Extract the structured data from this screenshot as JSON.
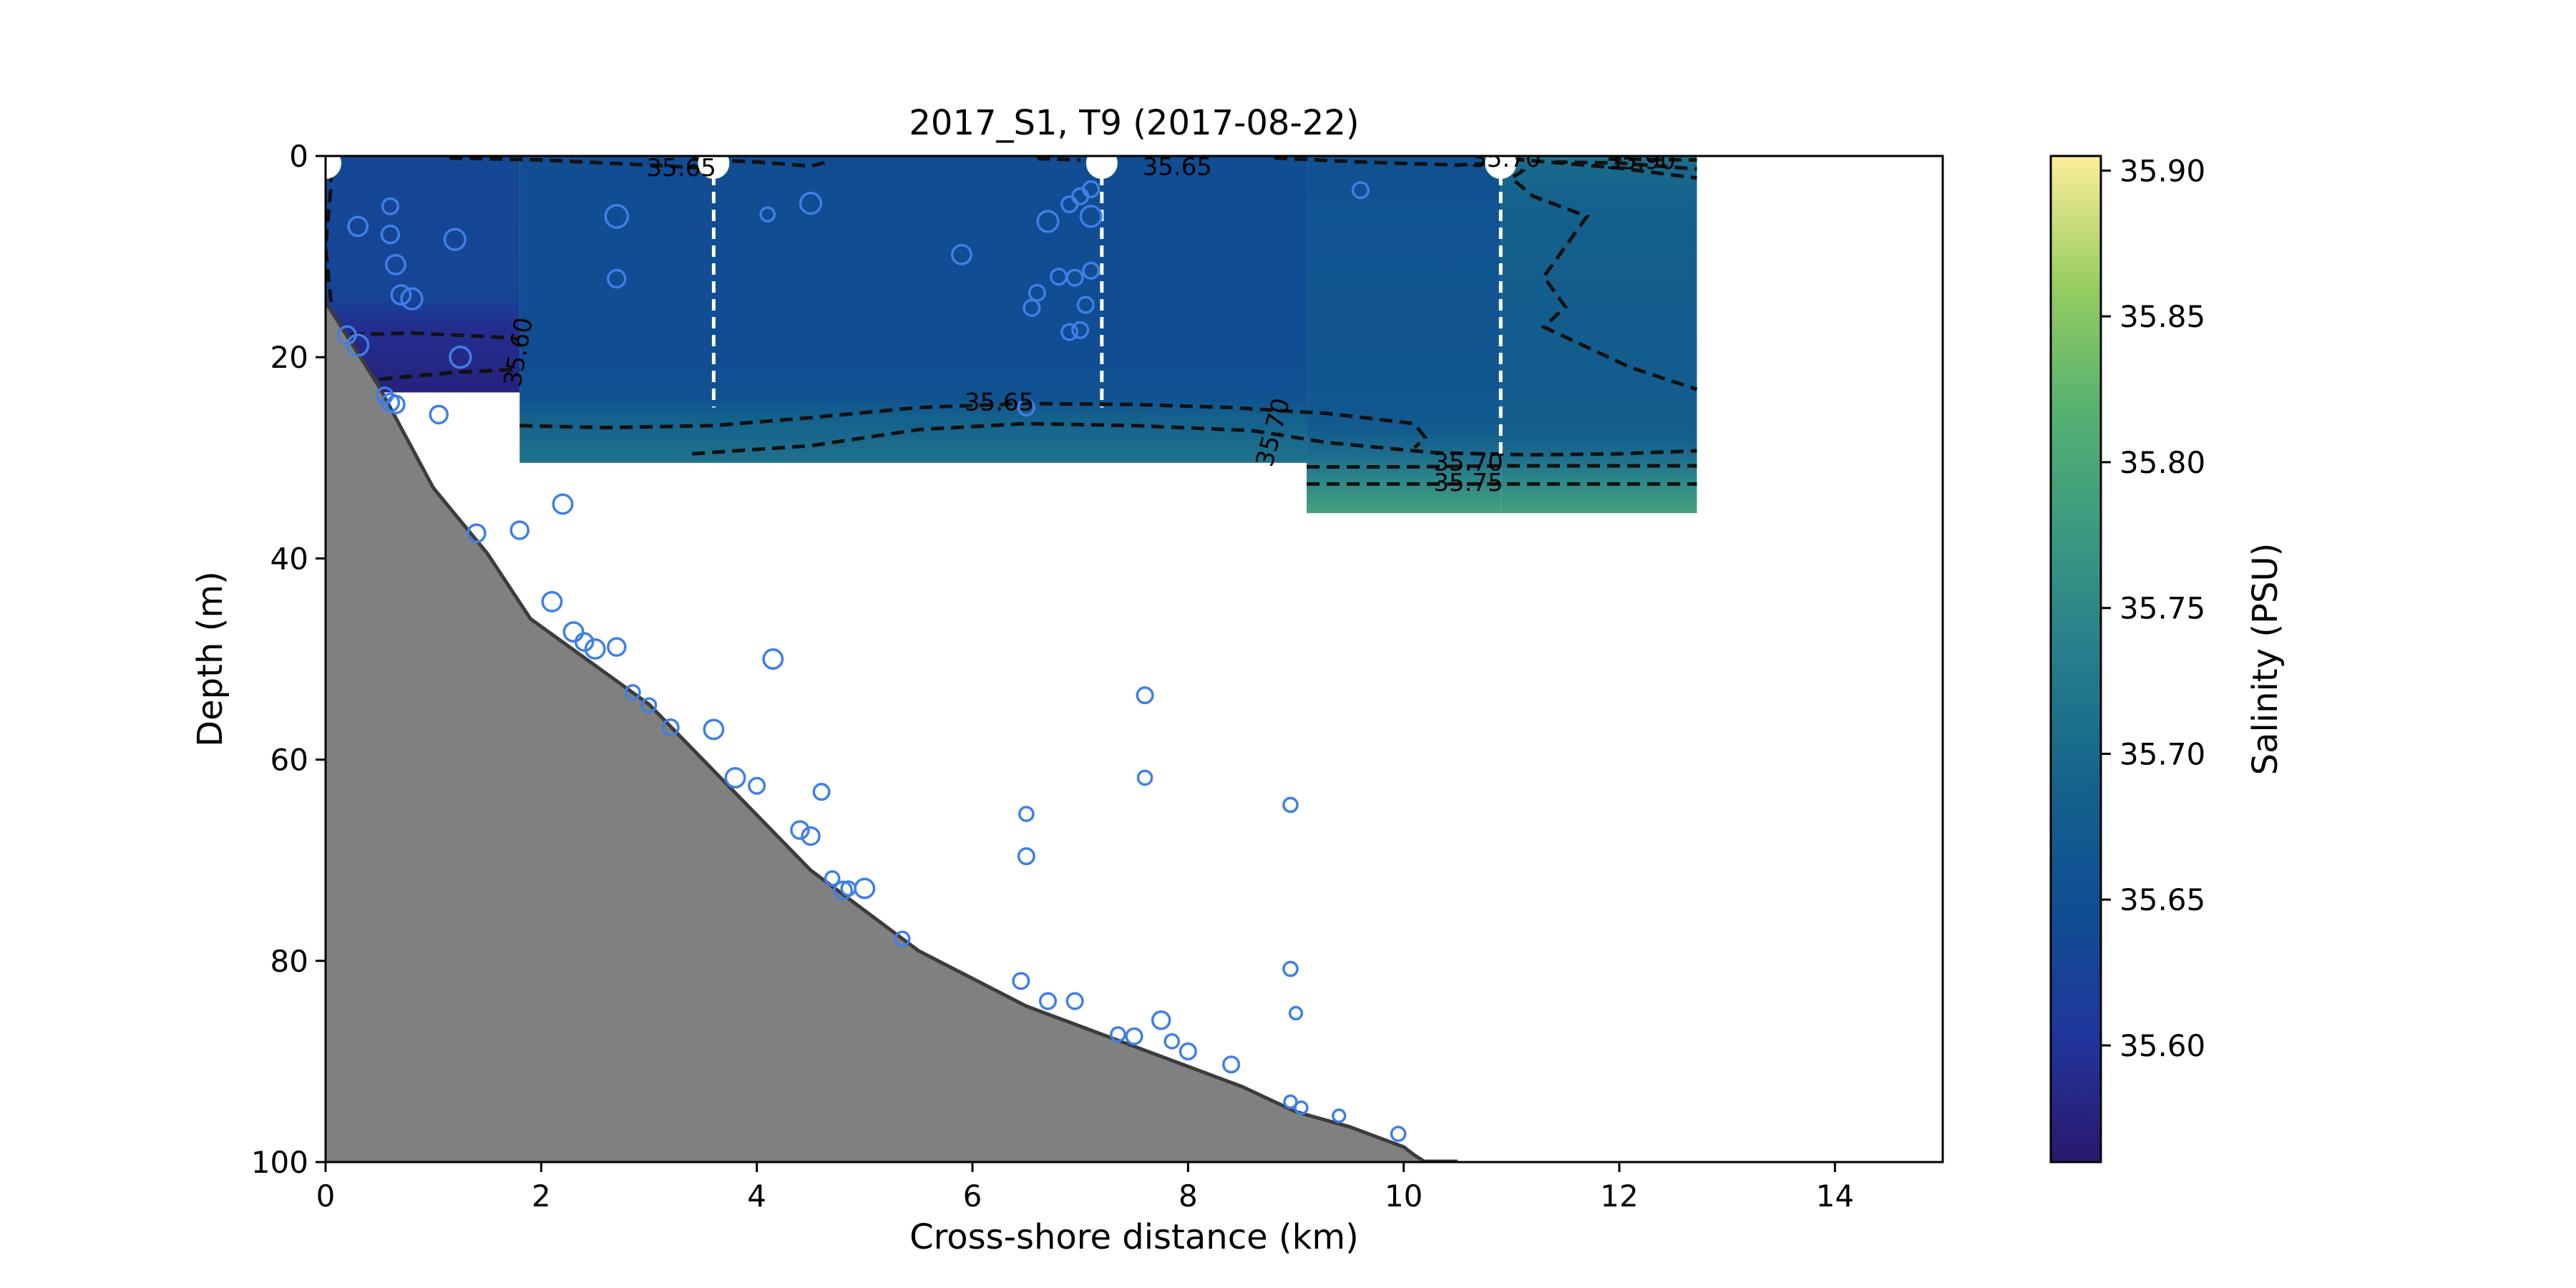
{
  "chart_data": {
    "type": "heatmap",
    "title": "2017_S1, T9 (2017-08-22)",
    "xlabel": "Cross-shore distance (km)",
    "ylabel": "Depth (m)",
    "xlim": [
      0,
      15
    ],
    "ylim": [
      0,
      100
    ],
    "y_inverted": true,
    "xticks": [
      "0",
      "2",
      "4",
      "6",
      "8",
      "10",
      "12",
      "14"
    ],
    "yticks": [
      "0",
      "20",
      "40",
      "60",
      "80",
      "100"
    ],
    "colorbar": {
      "label": "Salinity (PSU)",
      "range": [
        35.56,
        35.905
      ],
      "ticks": [
        "35.60",
        "35.65",
        "35.70",
        "35.75",
        "35.80",
        "35.85",
        "35.90"
      ],
      "colormap": "haline"
    },
    "salinity_field": {
      "columns": [
        {
          "x0": 0.0,
          "x1": 1.8,
          "z0": 0,
          "z1": 23.5,
          "profile": [
            [
              0,
              35.635
            ],
            [
              14,
              35.63
            ],
            [
              17,
              35.59
            ],
            [
              23.5,
              35.575
            ]
          ]
        },
        {
          "x0": 1.8,
          "x1": 9.1,
          "z0": 0,
          "z1": 30.5,
          "profile": [
            [
              0,
              35.645
            ],
            [
              20,
              35.645
            ],
            [
              24,
              35.655
            ],
            [
              26,
              35.685
            ],
            [
              30.5,
              35.715
            ]
          ]
        },
        {
          "x0": 9.1,
          "x1": 10.9,
          "z0": 0,
          "z1": 35.5,
          "profile": [
            [
              0,
              35.655
            ],
            [
              22,
              35.66
            ],
            [
              27,
              35.67
            ],
            [
              30,
              35.71
            ],
            [
              32,
              35.745
            ],
            [
              35.5,
              35.79
            ]
          ]
        },
        {
          "x0": 10.9,
          "x1": 12.72,
          "z0": 0,
          "z1": 35.5,
          "profile": [
            [
              0,
              35.72
            ],
            [
              1,
              35.7
            ],
            [
              5,
              35.685
            ],
            [
              20,
              35.675
            ],
            [
              28,
              35.68
            ],
            [
              30,
              35.71
            ],
            [
              32,
              35.745
            ],
            [
              35.5,
              35.79
            ]
          ]
        }
      ]
    },
    "contours": [
      {
        "level": "35.60",
        "points": [
          [
            0.05,
            17.8
          ],
          [
            0.8,
            17.6
          ],
          [
            1.6,
            18.0
          ],
          [
            1.8,
            18.2
          ]
        ]
      },
      {
        "level": "35.60",
        "points": [
          [
            0.5,
            22.2
          ],
          [
            1.2,
            21.5
          ],
          [
            1.8,
            21.2
          ]
        ]
      },
      {
        "level": "35.65",
        "points": [
          [
            1.8,
            26.8
          ],
          [
            2.6,
            27.0
          ],
          [
            3.6,
            26.8
          ],
          [
            4.5,
            26.0
          ],
          [
            5.5,
            25.0
          ],
          [
            6.5,
            24.6
          ],
          [
            7.5,
            24.7
          ],
          [
            8.4,
            25.0
          ],
          [
            9.3,
            25.6
          ],
          [
            10.1,
            26.6
          ],
          [
            10.2,
            28.0
          ],
          [
            10.1,
            29.0
          ]
        ]
      },
      {
        "level": "35.70",
        "points": [
          [
            3.4,
            29.6
          ],
          [
            4.5,
            28.8
          ],
          [
            5.5,
            27.2
          ],
          [
            6.5,
            26.6
          ],
          [
            7.5,
            26.8
          ],
          [
            8.6,
            27.3
          ],
          [
            9.3,
            28.5
          ],
          [
            10.3,
            29.5
          ],
          [
            11.2,
            29.7
          ],
          [
            12.0,
            29.6
          ],
          [
            12.72,
            29.3
          ]
        ]
      },
      {
        "level": "35.70",
        "points": [
          [
            9.1,
            30.9
          ],
          [
            10.0,
            30.9
          ],
          [
            11.0,
            30.8
          ],
          [
            12.0,
            30.8
          ],
          [
            12.72,
            30.8
          ]
        ]
      },
      {
        "level": "35.75",
        "points": [
          [
            9.1,
            32.6
          ],
          [
            10.0,
            32.6
          ],
          [
            11.0,
            32.6
          ],
          [
            12.0,
            32.6
          ],
          [
            12.72,
            32.6
          ]
        ]
      },
      {
        "level": "35.65",
        "points": [
          [
            0.05,
            14.5
          ],
          [
            0.0,
            9.0
          ],
          [
            0.05,
            3.0
          ],
          [
            0.05,
            1.5
          ]
        ]
      },
      {
        "level": "35.65",
        "points": [
          [
            1.15,
            0.2
          ],
          [
            2.0,
            0.4
          ],
          [
            3.0,
            0.9
          ],
          [
            3.5,
            1.2
          ]
        ]
      },
      {
        "level": "35.65",
        "points": [
          [
            3.4,
            0.3
          ],
          [
            4.0,
            0.6
          ],
          [
            4.5,
            1.0
          ],
          [
            4.65,
            0.6
          ]
        ]
      },
      {
        "level": "35.65",
        "points": [
          [
            6.6,
            0.25
          ],
          [
            7.0,
            0.4
          ]
        ]
      },
      {
        "level": "35.65",
        "points": [
          [
            8.8,
            0.2
          ],
          [
            9.6,
            0.6
          ],
          [
            10.5,
            0.9
          ],
          [
            11.0,
            0.6
          ]
        ]
      },
      {
        "level": "35.70",
        "points": [
          [
            10.9,
            0.9
          ],
          [
            11.1,
            1.5
          ],
          [
            11.0,
            2.2
          ],
          [
            11.2,
            4.0
          ],
          [
            11.7,
            6.0
          ],
          [
            11.5,
            9.0
          ],
          [
            11.3,
            12.0
          ],
          [
            11.5,
            15.0
          ],
          [
            11.3,
            17.0
          ],
          [
            11.7,
            19.0
          ],
          [
            12.1,
            21.0
          ],
          [
            12.72,
            23.2
          ]
        ]
      },
      {
        "level": "35.70",
        "points": [
          [
            11.0,
            0.3
          ],
          [
            12.0,
            1.2
          ],
          [
            12.72,
            2.2
          ]
        ]
      },
      {
        "level": "35.80",
        "points": [
          [
            11.4,
            0.6
          ],
          [
            12.0,
            0.7
          ],
          [
            12.72,
            1.3
          ]
        ]
      },
      {
        "level": "35.90",
        "points": [
          [
            11.9,
            0.3
          ],
          [
            12.72,
            0.4
          ]
        ]
      }
    ],
    "contour_labels": [
      {
        "text": "35.60",
        "x": 1.8,
        "y": 19.5,
        "angle": -80
      },
      {
        "text": "35.65",
        "x": 3.3,
        "y": 1.3,
        "angle": 0
      },
      {
        "text": "35.65",
        "x": 7.9,
        "y": 1.2,
        "angle": 0
      },
      {
        "text": "35.65",
        "x": 6.25,
        "y": 24.6,
        "angle": 0
      },
      {
        "text": "35.70",
        "x": 8.8,
        "y": 27.5,
        "angle": -75
      },
      {
        "text": "35.70",
        "x": 10.6,
        "y": 30.6,
        "angle": 0
      },
      {
        "text": "35.75",
        "x": 10.6,
        "y": 32.6,
        "angle": 0
      },
      {
        "text": "35.70",
        "x": 10.95,
        "y": 0.4,
        "angle": 0
      },
      {
        "text": "35.90",
        "x": 12.2,
        "y": 0.6,
        "angle": 0
      }
    ],
    "stations": [
      {
        "x": 0.0,
        "depth": 0
      },
      {
        "x": 3.6,
        "depth": 25
      },
      {
        "x": 7.2,
        "depth": 25
      },
      {
        "x": 10.9,
        "depth": 30
      }
    ],
    "bathymetry": [
      [
        0,
        14.5
      ],
      [
        0.5,
        23
      ],
      [
        1.0,
        33
      ],
      [
        1.5,
        39.5
      ],
      [
        1.9,
        46
      ],
      [
        3.0,
        54.5
      ],
      [
        4.5,
        71
      ],
      [
        5.5,
        79
      ],
      [
        6.5,
        84.5
      ],
      [
        7.5,
        88.5
      ],
      [
        8.5,
        92.5
      ],
      [
        9.0,
        95
      ],
      [
        9.5,
        96.5
      ],
      [
        10.0,
        98.5
      ],
      [
        10.1,
        99.3
      ],
      [
        10.2,
        100
      ]
    ],
    "observations": [
      {
        "x": 0.3,
        "y": 7.0,
        "s": 1.1
      },
      {
        "x": 0.6,
        "y": 5.0,
        "s": 0.9
      },
      {
        "x": 0.6,
        "y": 7.8,
        "s": 1.0
      },
      {
        "x": 0.65,
        "y": 10.8,
        "s": 1.1
      },
      {
        "x": 0.7,
        "y": 13.8,
        "s": 1.1
      },
      {
        "x": 0.8,
        "y": 14.2,
        "s": 1.2
      },
      {
        "x": 0.2,
        "y": 17.8,
        "s": 1.0
      },
      {
        "x": 0.3,
        "y": 18.8,
        "s": 1.2
      },
      {
        "x": 0.55,
        "y": 23.8,
        "s": 0.9
      },
      {
        "x": 0.6,
        "y": 24.5,
        "s": 1.0
      },
      {
        "x": 0.65,
        "y": 24.7,
        "s": 1.0
      },
      {
        "x": 1.2,
        "y": 8.3,
        "s": 1.2
      },
      {
        "x": 1.25,
        "y": 20.0,
        "s": 1.2
      },
      {
        "x": 1.05,
        "y": 25.7,
        "s": 1.0
      },
      {
        "x": 2.7,
        "y": 6.0,
        "s": 1.3
      },
      {
        "x": 2.7,
        "y": 12.2,
        "s": 1.0
      },
      {
        "x": 4.1,
        "y": 5.8,
        "s": 0.8
      },
      {
        "x": 4.5,
        "y": 4.7,
        "s": 1.2
      },
      {
        "x": 5.9,
        "y": 9.8,
        "s": 1.1
      },
      {
        "x": 6.5,
        "y": 25.0,
        "s": 0.9
      },
      {
        "x": 6.6,
        "y": 13.6,
        "s": 0.9
      },
      {
        "x": 6.55,
        "y": 15.1,
        "s": 0.9
      },
      {
        "x": 6.7,
        "y": 6.5,
        "s": 1.2
      },
      {
        "x": 6.8,
        "y": 12.0,
        "s": 0.9
      },
      {
        "x": 6.9,
        "y": 4.8,
        "s": 0.9
      },
      {
        "x": 6.9,
        "y": 17.5,
        "s": 0.9
      },
      {
        "x": 6.95,
        "y": 12.1,
        "s": 0.9
      },
      {
        "x": 7.0,
        "y": 4.0,
        "s": 0.9
      },
      {
        "x": 7.0,
        "y": 17.3,
        "s": 0.9
      },
      {
        "x": 7.05,
        "y": 14.8,
        "s": 0.9
      },
      {
        "x": 7.1,
        "y": 11.4,
        "s": 0.9
      },
      {
        "x": 7.1,
        "y": 6.0,
        "s": 1.2
      },
      {
        "x": 7.1,
        "y": 3.3,
        "s": 0.9
      },
      {
        "x": 9.6,
        "y": 3.4,
        "s": 0.9
      },
      {
        "x": 1.4,
        "y": 37.5,
        "s": 1.0
      },
      {
        "x": 1.8,
        "y": 37.2,
        "s": 1.0
      },
      {
        "x": 2.2,
        "y": 34.6,
        "s": 1.1
      },
      {
        "x": 2.1,
        "y": 44.3,
        "s": 1.1
      },
      {
        "x": 2.3,
        "y": 47.3,
        "s": 1.1
      },
      {
        "x": 2.4,
        "y": 48.3,
        "s": 1.0
      },
      {
        "x": 2.5,
        "y": 49.0,
        "s": 1.1
      },
      {
        "x": 2.7,
        "y": 48.8,
        "s": 1.0
      },
      {
        "x": 2.85,
        "y": 53.3,
        "s": 0.8
      },
      {
        "x": 3.0,
        "y": 54.6,
        "s": 0.8
      },
      {
        "x": 3.2,
        "y": 56.8,
        "s": 0.9
      },
      {
        "x": 3.6,
        "y": 57.0,
        "s": 1.1
      },
      {
        "x": 3.8,
        "y": 61.8,
        "s": 1.1
      },
      {
        "x": 4.0,
        "y": 62.6,
        "s": 0.9
      },
      {
        "x": 4.15,
        "y": 50.0,
        "s": 1.1
      },
      {
        "x": 4.4,
        "y": 67.0,
        "s": 1.0
      },
      {
        "x": 4.5,
        "y": 67.6,
        "s": 1.0
      },
      {
        "x": 4.6,
        "y": 63.2,
        "s": 0.9
      },
      {
        "x": 4.7,
        "y": 71.8,
        "s": 0.8
      },
      {
        "x": 4.8,
        "y": 73.0,
        "s": 1.0
      },
      {
        "x": 4.85,
        "y": 72.8,
        "s": 0.8
      },
      {
        "x": 5.0,
        "y": 72.8,
        "s": 1.1
      },
      {
        "x": 5.35,
        "y": 77.8,
        "s": 0.8
      },
      {
        "x": 6.45,
        "y": 82.0,
        "s": 0.9
      },
      {
        "x": 6.5,
        "y": 65.4,
        "s": 0.8
      },
      {
        "x": 6.5,
        "y": 69.6,
        "s": 0.9
      },
      {
        "x": 6.7,
        "y": 84.0,
        "s": 0.9
      },
      {
        "x": 6.95,
        "y": 84.0,
        "s": 0.9
      },
      {
        "x": 7.35,
        "y": 87.3,
        "s": 0.8
      },
      {
        "x": 7.5,
        "y": 87.5,
        "s": 0.9
      },
      {
        "x": 7.6,
        "y": 53.6,
        "s": 0.9
      },
      {
        "x": 7.6,
        "y": 61.8,
        "s": 0.8
      },
      {
        "x": 7.75,
        "y": 85.9,
        "s": 1.0
      },
      {
        "x": 7.85,
        "y": 88.0,
        "s": 0.8
      },
      {
        "x": 8.0,
        "y": 89.0,
        "s": 0.9
      },
      {
        "x": 8.4,
        "y": 90.3,
        "s": 0.9
      },
      {
        "x": 8.95,
        "y": 64.5,
        "s": 0.8
      },
      {
        "x": 8.95,
        "y": 80.8,
        "s": 0.8
      },
      {
        "x": 9.0,
        "y": 85.2,
        "s": 0.7
      },
      {
        "x": 8.95,
        "y": 94.0,
        "s": 0.7
      },
      {
        "x": 9.05,
        "y": 94.6,
        "s": 0.7
      },
      {
        "x": 9.4,
        "y": 95.4,
        "s": 0.7
      },
      {
        "x": 9.95,
        "y": 97.2,
        "s": 0.8
      }
    ]
  }
}
